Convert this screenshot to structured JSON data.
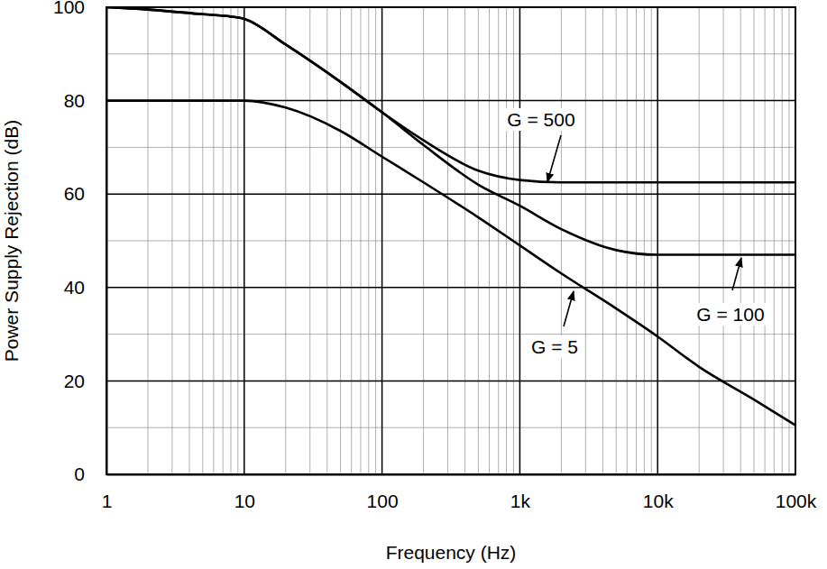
{
  "chart_data": {
    "type": "line",
    "x_label": "Frequency (Hz)",
    "y_label": "Power Supply Rejection (dB)",
    "log": "x",
    "grid": true,
    "x": [
      1,
      2,
      5,
      8,
      10,
      20,
      50,
      100,
      200,
      500,
      1000,
      2000,
      5000,
      10000,
      20000,
      50000,
      100000
    ],
    "series": [
      {
        "name": "G = 500",
        "color": "#000000",
        "values": [
          100,
          99.5,
          98.5,
          98,
          97.5,
          92,
          84,
          77.5,
          71.5,
          65,
          63,
          62.5,
          62.5,
          62.5,
          62.5,
          62.5,
          62.5
        ]
      },
      {
        "name": "G = 100",
        "color": "#000000",
        "values": [
          100,
          99.5,
          98.5,
          98,
          97.5,
          92,
          84,
          77.5,
          70.5,
          62,
          57.5,
          52.5,
          48,
          47,
          47,
          47,
          47
        ]
      },
      {
        "name": "G = 5",
        "color": "#000000",
        "values": [
          80,
          80,
          80,
          80,
          80,
          78.5,
          73.5,
          68,
          62.5,
          55,
          49,
          43,
          35.5,
          29.5,
          23,
          16,
          10.5
        ]
      }
    ],
    "xlim": [
      1,
      100000
    ],
    "xticks": [
      1,
      10,
      100,
      {
        "value": 1000,
        "label": "1k"
      },
      {
        "value": 10000,
        "label": "10k"
      },
      {
        "value": 100000,
        "label": "100k"
      }
    ],
    "ylim": [
      0,
      100
    ],
    "yticks": [
      0,
      20,
      40,
      60,
      80,
      100
    ]
  }
}
